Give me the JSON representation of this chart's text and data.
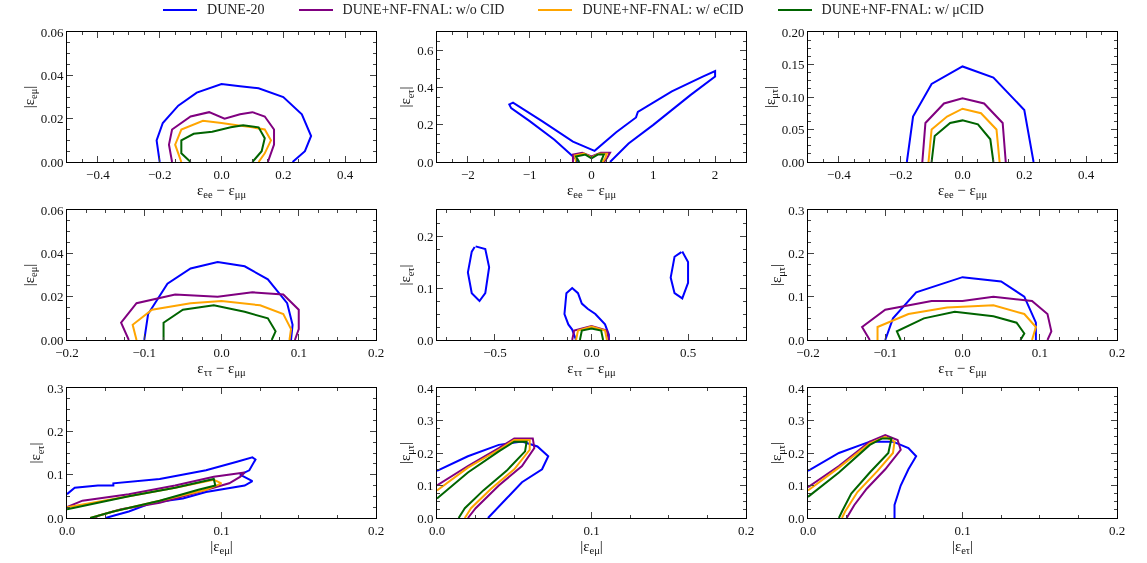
{
  "chart_data": [
    {
      "type": "line",
      "legend": "top",
      "xlabel": "ε$_{ee}$ − ε$_{μμ}$",
      "ylabel": "|ε$_{eμ}$|",
      "xlim": [
        -0.5,
        0.5
      ],
      "ylim": [
        0,
        0.06
      ],
      "xticks": [
        {
          "value": -0.4,
          "label": "−0.4"
        },
        {
          "value": -0.2,
          "label": "−0.2"
        },
        {
          "value": 0,
          "label": "0.0"
        },
        0.2,
        0.4
      ],
      "yticks": [
        {
          "value": 0,
          "label": "0.00"
        },
        0.02,
        0.04,
        0.06
      ],
      "series": [
        {
          "name": "DUNE-20",
          "color": "#0000ff",
          "x": [
            -0.2,
            -0.21,
            -0.19,
            -0.14,
            -0.08,
            0,
            0.06,
            0.12,
            0.2,
            0.26,
            0.29,
            0.27,
            0.23
          ],
          "values": [
            0,
            0.01,
            0.018,
            0.026,
            0.032,
            0.036,
            0.035,
            0.034,
            0.03,
            0.022,
            0.012,
            0.005,
            0
          ]
        },
        {
          "name": "DUNE+NF-FNAL: w/o CID",
          "color": "#800080",
          "x": [
            -0.16,
            -0.17,
            -0.16,
            -0.1,
            -0.04,
            0.01,
            0.06,
            0.1,
            0.14,
            0.17,
            0.17,
            0.15
          ],
          "values": [
            0,
            0.008,
            0.015,
            0.021,
            0.023,
            0.02,
            0.022,
            0.023,
            0.021,
            0.015,
            0.008,
            0
          ]
        },
        {
          "name": "DUNE+NF-FNAL: w/ eCID",
          "color": "#ffa500",
          "x": [
            -0.13,
            -0.15,
            -0.13,
            -0.06,
            0,
            0.05,
            0.1,
            0.14,
            0.16,
            0.14,
            0.12
          ],
          "values": [
            0,
            0.008,
            0.015,
            0.019,
            0.018,
            0.017,
            0.016,
            0.015,
            0.01,
            0.004,
            0
          ]
        },
        {
          "name": "DUNE+NF-FNAL: w/ μCID",
          "color": "#006400",
          "x": [
            -0.1,
            -0.13,
            -0.13,
            -0.09,
            -0.03,
            0.03,
            0.07,
            0.12,
            0.14,
            0.13,
            0.1
          ],
          "values": [
            0,
            0.004,
            0.01,
            0.013,
            0.014,
            0.016,
            0.017,
            0.016,
            0.011,
            0.005,
            0
          ]
        }
      ]
    },
    {
      "type": "line",
      "xlabel": "ε$_{ee}$ − ε$_{μμ}$",
      "ylabel": "|ε$_{eτ}$|",
      "xlim": [
        -2.5,
        2.5
      ],
      "ylim": [
        0,
        0.7
      ],
      "xticks": [
        {
          "value": -2,
          "label": "−2"
        },
        {
          "value": -1,
          "label": "−1"
        },
        0,
        1,
        2
      ],
      "yticks": [
        {
          "value": 0,
          "label": "0.0"
        },
        0.2,
        0.4,
        0.6
      ],
      "series": [
        {
          "color": "#0000ff",
          "x": [
            -0.2,
            -0.6,
            -1.0,
            -1.3,
            -1.33,
            -1.27,
            -0.8,
            -0.3,
            0.05,
            0.4,
            0.72,
            0.75,
            1.3,
            1.8,
            2.0,
            2.0,
            1.6,
            1.0,
            0.6,
            0.3
          ],
          "values": [
            0,
            0.12,
            0.22,
            0.29,
            0.31,
            0.32,
            0.22,
            0.11,
            0.06,
            0.16,
            0.24,
            0.27,
            0.38,
            0.46,
            0.49,
            0.46,
            0.36,
            0.2,
            0.1,
            0
          ]
        },
        {
          "color": "#800080",
          "x": [
            -0.3,
            -0.3,
            -0.15,
            0,
            0.15,
            0.3,
            0.25,
            0.2
          ],
          "values": [
            0,
            0.04,
            0.05,
            0.03,
            0.05,
            0.05,
            0.02,
            0
          ]
        },
        {
          "color": "#ffa500",
          "x": [
            -0.25,
            -0.27,
            -0.12,
            0,
            0.12,
            0.25,
            0.22,
            0.18
          ],
          "values": [
            0,
            0.035,
            0.045,
            0.025,
            0.045,
            0.045,
            0.02,
            0
          ]
        },
        {
          "color": "#006400",
          "x": [
            -0.2,
            -0.25,
            -0.1,
            0,
            0.1,
            0.2,
            0.15
          ],
          "values": [
            0,
            0.03,
            0.04,
            0.02,
            0.04,
            0.04,
            0
          ]
        }
      ]
    },
    {
      "type": "line",
      "xlabel": "ε$_{ee}$ − ε$_{μμ}$",
      "ylabel": "|ε$_{μτ}$|",
      "xlim": [
        -0.5,
        0.5
      ],
      "ylim": [
        0,
        0.2
      ],
      "xticks": [
        {
          "value": -0.4,
          "label": "−0.4"
        },
        {
          "value": -0.2,
          "label": "−0.2"
        },
        {
          "value": 0,
          "label": "0.0"
        },
        0.2,
        0.4
      ],
      "yticks": [
        {
          "value": 0,
          "label": "0.00"
        },
        0.05,
        {
          "value": 0.1,
          "label": "0.10"
        },
        0.15,
        {
          "value": 0.2,
          "label": "0.20"
        }
      ],
      "series": [
        {
          "color": "#0000ff",
          "x": [
            -0.18,
            -0.16,
            -0.1,
            0,
            0.1,
            0.2,
            0.23
          ],
          "values": [
            0,
            0.07,
            0.12,
            0.147,
            0.13,
            0.08,
            0
          ]
        },
        {
          "color": "#800080",
          "x": [
            -0.13,
            -0.12,
            -0.06,
            0,
            0.07,
            0.13,
            0.14
          ],
          "values": [
            0,
            0.06,
            0.09,
            0.098,
            0.09,
            0.06,
            0
          ]
        },
        {
          "color": "#ffa500",
          "x": [
            -0.11,
            -0.1,
            -0.05,
            0,
            0.06,
            0.11,
            0.12
          ],
          "values": [
            0,
            0.05,
            0.07,
            0.082,
            0.075,
            0.05,
            0
          ]
        },
        {
          "color": "#006400",
          "x": [
            -0.1,
            -0.09,
            -0.04,
            0,
            0.05,
            0.09,
            0.1
          ],
          "values": [
            0,
            0.04,
            0.06,
            0.064,
            0.058,
            0.035,
            0
          ]
        }
      ]
    },
    {
      "type": "line",
      "xlabel": "ε$_{ττ}$ − ε$_{μμ}$",
      "ylabel": "|ε$_{eμ}$|",
      "xlim": [
        -0.2,
        0.2
      ],
      "ylim": [
        0,
        0.06
      ],
      "xticks": [
        {
          "value": -0.2,
          "label": "−0.2"
        },
        {
          "value": -0.1,
          "label": "−0.1"
        },
        {
          "value": 0,
          "label": "0.0"
        },
        0.1,
        0.2
      ],
      "yticks": [
        {
          "value": 0,
          "label": "0.00"
        },
        0.02,
        0.04,
        0.06
      ],
      "series": [
        {
          "color": "#0000ff",
          "x": [
            -0.1,
            -0.095,
            -0.07,
            -0.04,
            -0.005,
            0.03,
            0.06,
            0.085,
            0.092,
            0.09
          ],
          "values": [
            0,
            0.012,
            0.026,
            0.033,
            0.036,
            0.034,
            0.028,
            0.017,
            0.007,
            0
          ]
        },
        {
          "color": "#800080",
          "x": [
            -0.12,
            -0.13,
            -0.11,
            -0.06,
            -0.005,
            0.04,
            0.08,
            0.1,
            0.1,
            0.095
          ],
          "values": [
            0,
            0.008,
            0.017,
            0.021,
            0.02,
            0.022,
            0.021,
            0.014,
            0.005,
            0
          ]
        },
        {
          "color": "#ffa500",
          "x": [
            -0.11,
            -0.115,
            -0.09,
            -0.04,
            0,
            0.05,
            0.08,
            0.09,
            0.088
          ],
          "values": [
            0,
            0.007,
            0.014,
            0.017,
            0.018,
            0.016,
            0.012,
            0.005,
            0
          ]
        },
        {
          "color": "#006400",
          "x": [
            -0.075,
            -0.075,
            -0.05,
            -0.01,
            0.03,
            0.06,
            0.07,
            0.065
          ],
          "values": [
            0,
            0.008,
            0.014,
            0.016,
            0.013,
            0.01,
            0.004,
            0
          ]
        }
      ]
    },
    {
      "type": "line",
      "xlabel": "ε$_{ττ}$ − ε$_{μμ}$",
      "ylabel": "|ε$_{eτ}$|",
      "xlim": [
        -0.8,
        0.8
      ],
      "ylim": [
        0,
        0.25
      ],
      "xticks": [
        {
          "value": -0.5,
          "label": "−0.5"
        },
        {
          "value": 0,
          "label": "0.0"
        },
        0.5
      ],
      "yticks": [
        {
          "value": 0,
          "label": "0.0"
        },
        0.1,
        0.2
      ],
      "series": [
        {
          "color": "#0000ff",
          "x": [
            -0.6,
            -0.55,
            -0.53,
            -0.55,
            -0.58,
            -0.62,
            -0.64,
            -0.62,
            -0.605
          ],
          "values": [
            0.18,
            0.175,
            0.14,
            0.09,
            0.075,
            0.09,
            0.13,
            0.17,
            0.179
          ]
        },
        {
          "color": "#0000ff",
          "x": [
            0.47,
            0.5,
            0.5,
            0.47,
            0.43,
            0.41,
            0.43,
            0.465
          ],
          "values": [
            0.17,
            0.15,
            0.11,
            0.08,
            0.09,
            0.12,
            0.16,
            0.169
          ]
        },
        {
          "color": "#0000ff",
          "x": [
            -0.08,
            -0.1,
            -0.12,
            -0.14,
            -0.13,
            -0.1,
            -0.07,
            -0.05,
            -0.02,
            0.02,
            0.07,
            0.09,
            0.09
          ],
          "values": [
            0,
            0.02,
            0.03,
            0.05,
            0.09,
            0.1,
            0.09,
            0.07,
            0.06,
            0.05,
            0.03,
            0.01,
            0
          ]
        },
        {
          "color": "#800080",
          "x": [
            -0.1,
            -0.09,
            0,
            0.08,
            0.09
          ],
          "values": [
            0,
            0.018,
            0.027,
            0.018,
            0
          ]
        },
        {
          "color": "#ffa500",
          "x": [
            -0.08,
            -0.07,
            0,
            0.07,
            0.08
          ],
          "values": [
            0,
            0.018,
            0.026,
            0.018,
            0
          ]
        },
        {
          "color": "#006400",
          "x": [
            -0.06,
            -0.05,
            0,
            0.05,
            0.06
          ],
          "values": [
            0,
            0.018,
            0.022,
            0.018,
            0
          ]
        }
      ]
    },
    {
      "type": "line",
      "xlabel": "ε$_{ττ}$ − ε$_{μμ}$",
      "ylabel": "|ε$_{μτ}$|",
      "xlim": [
        -0.2,
        0.2
      ],
      "ylim": [
        0,
        0.3
      ],
      "xticks": [
        {
          "value": -0.2,
          "label": "−0.2"
        },
        {
          "value": -0.1,
          "label": "−0.1"
        },
        {
          "value": 0,
          "label": "0.0"
        },
        0.1,
        0.2
      ],
      "yticks": [
        {
          "value": 0,
          "label": "0.0"
        },
        0.1,
        0.2,
        0.3
      ],
      "series": [
        {
          "color": "#0000ff",
          "x": [
            -0.1,
            -0.09,
            -0.06,
            0,
            0.05,
            0.08,
            0.095,
            0.095
          ],
          "values": [
            0,
            0.05,
            0.11,
            0.145,
            0.135,
            0.1,
            0.04,
            0
          ]
        },
        {
          "color": "#800080",
          "x": [
            -0.12,
            -0.13,
            -0.1,
            -0.04,
            0,
            0.04,
            0.09,
            0.11,
            0.115,
            0.11
          ],
          "values": [
            0,
            0.03,
            0.07,
            0.09,
            0.09,
            0.1,
            0.09,
            0.06,
            0.02,
            0
          ]
        },
        {
          "color": "#ffa500",
          "x": [
            -0.11,
            -0.11,
            -0.07,
            -0.02,
            0.04,
            0.08,
            0.095,
            0.09
          ],
          "values": [
            0,
            0.03,
            0.06,
            0.075,
            0.08,
            0.06,
            0.03,
            0
          ]
        },
        {
          "color": "#006400",
          "x": [
            -0.08,
            -0.085,
            -0.05,
            -0.01,
            0.04,
            0.07,
            0.08,
            0.075
          ],
          "values": [
            0,
            0.02,
            0.05,
            0.065,
            0.055,
            0.04,
            0.015,
            0
          ]
        }
      ]
    },
    {
      "type": "line",
      "xlabel": "|ε$_{eμ}$|",
      "ylabel": "|ε$_{eτ}$|",
      "xlim": [
        0,
        0.2
      ],
      "ylim": [
        0,
        0.3
      ],
      "xticks": [
        {
          "value": 0,
          "label": "0.0"
        },
        0.1,
        0.2
      ],
      "yticks": [
        {
          "value": 0,
          "label": "0.0"
        },
        0.1,
        0.2,
        0.3
      ],
      "series": [
        {
          "color": "#0000ff",
          "x": [
            0,
            0.005,
            0.02,
            0.03,
            0.03,
            0.06,
            0.09,
            0.11,
            0.12,
            0.122,
            0.118,
            0.112,
            0.12,
            0.115,
            0.09,
            0.075,
            0.055,
            0.04,
            0.03,
            0.025
          ],
          "values": [
            0.055,
            0.07,
            0.075,
            0.075,
            0.08,
            0.09,
            0.11,
            0.13,
            0.14,
            0.135,
            0.11,
            0.1,
            0.085,
            0.075,
            0.06,
            0.045,
            0.035,
            0.015,
            0.005,
            0
          ]
        },
        {
          "color": "#800080",
          "x": [
            0,
            0.01,
            0.04,
            0.07,
            0.095,
            0.115,
            0.112,
            0.105,
            0.08,
            0.06,
            0.035,
            0.02,
            0.018
          ],
          "values": [
            0.025,
            0.04,
            0.055,
            0.075,
            0.095,
            0.105,
            0.095,
            0.08,
            0.055,
            0.035,
            0.02,
            0.005,
            0
          ]
        },
        {
          "color": "#ffa500",
          "x": [
            0,
            0.04,
            0.07,
            0.095,
            0.1,
            0.09,
            0.06,
            0.03,
            0.015
          ],
          "values": [
            0.025,
            0.05,
            0.07,
            0.088,
            0.08,
            0.065,
            0.04,
            0.015,
            0
          ]
        },
        {
          "color": "#006400",
          "x": [
            0,
            0.04,
            0.07,
            0.095,
            0.096,
            0.085,
            0.06,
            0.03,
            0.015
          ],
          "values": [
            0.02,
            0.05,
            0.07,
            0.09,
            0.075,
            0.065,
            0.04,
            0.015,
            0
          ]
        }
      ]
    },
    {
      "type": "line",
      "xlabel": "|ε$_{eμ}$|",
      "ylabel": "|ε$_{μτ}$|",
      "xlim": [
        0,
        0.2
      ],
      "ylim": [
        0,
        0.4
      ],
      "xticks": [
        {
          "value": 0,
          "label": "0.0"
        },
        0.1,
        0.2
      ],
      "yticks": [
        {
          "value": 0,
          "label": "0.0"
        },
        0.1,
        0.2,
        0.3,
        0.4
      ],
      "series": [
        {
          "color": "#0000ff",
          "x": [
            0,
            0.02,
            0.04,
            0.055,
            0.065,
            0.072,
            0.068,
            0.055,
            0.045,
            0.035,
            0.033
          ],
          "values": [
            0.145,
            0.19,
            0.225,
            0.235,
            0.22,
            0.19,
            0.15,
            0.11,
            0.06,
            0.01,
            0
          ]
        },
        {
          "color": "#800080",
          "x": [
            0,
            0.02,
            0.04,
            0.05,
            0.062,
            0.063,
            0.055,
            0.04,
            0.025,
            0.02
          ],
          "values": [
            0.1,
            0.16,
            0.215,
            0.245,
            0.245,
            0.215,
            0.16,
            0.1,
            0.03,
            0
          ]
        },
        {
          "color": "#ffa500",
          "x": [
            0,
            0.02,
            0.04,
            0.05,
            0.06,
            0.06,
            0.05,
            0.035,
            0.022,
            0.018
          ],
          "values": [
            0.085,
            0.155,
            0.21,
            0.24,
            0.24,
            0.21,
            0.15,
            0.09,
            0.03,
            0
          ]
        },
        {
          "color": "#006400",
          "x": [
            0,
            0.02,
            0.04,
            0.05,
            0.058,
            0.057,
            0.045,
            0.03,
            0.018,
            0.014
          ],
          "values": [
            0.06,
            0.14,
            0.205,
            0.235,
            0.235,
            0.205,
            0.145,
            0.085,
            0.03,
            0
          ]
        }
      ]
    },
    {
      "type": "line",
      "xlabel": "|ε$_{eτ}$|",
      "ylabel": "|ε$_{μτ}$|",
      "xlim": [
        0,
        0.2
      ],
      "ylim": [
        0,
        0.4
      ],
      "xticks": [
        {
          "value": 0,
          "label": "0.0"
        },
        0.1,
        0.2
      ],
      "yticks": [
        {
          "value": 0,
          "label": "0.0"
        },
        0.1,
        0.2,
        0.3,
        0.4
      ],
      "series": [
        {
          "color": "#0000ff",
          "x": [
            0,
            0.02,
            0.04,
            0.055,
            0.065,
            0.07,
            0.065,
            0.06,
            0.056,
            0.056
          ],
          "values": [
            0.145,
            0.2,
            0.235,
            0.235,
            0.215,
            0.19,
            0.15,
            0.1,
            0.04,
            0
          ]
        },
        {
          "color": "#800080",
          "x": [
            0,
            0.02,
            0.04,
            0.05,
            0.058,
            0.06,
            0.05,
            0.038,
            0.03,
            0.025
          ],
          "values": [
            0.095,
            0.16,
            0.235,
            0.255,
            0.24,
            0.21,
            0.15,
            0.09,
            0.04,
            0
          ]
        },
        {
          "color": "#ffa500",
          "x": [
            0,
            0.02,
            0.04,
            0.05,
            0.056,
            0.055,
            0.045,
            0.032,
            0.024,
            0.022
          ],
          "values": [
            0.085,
            0.155,
            0.23,
            0.25,
            0.235,
            0.2,
            0.145,
            0.08,
            0.02,
            0
          ]
        },
        {
          "color": "#006400",
          "x": [
            0,
            0.02,
            0.04,
            0.048,
            0.054,
            0.052,
            0.04,
            0.028,
            0.022,
            0.02
          ],
          "values": [
            0.065,
            0.14,
            0.225,
            0.245,
            0.245,
            0.2,
            0.14,
            0.075,
            0.02,
            0
          ]
        }
      ]
    }
  ]
}
